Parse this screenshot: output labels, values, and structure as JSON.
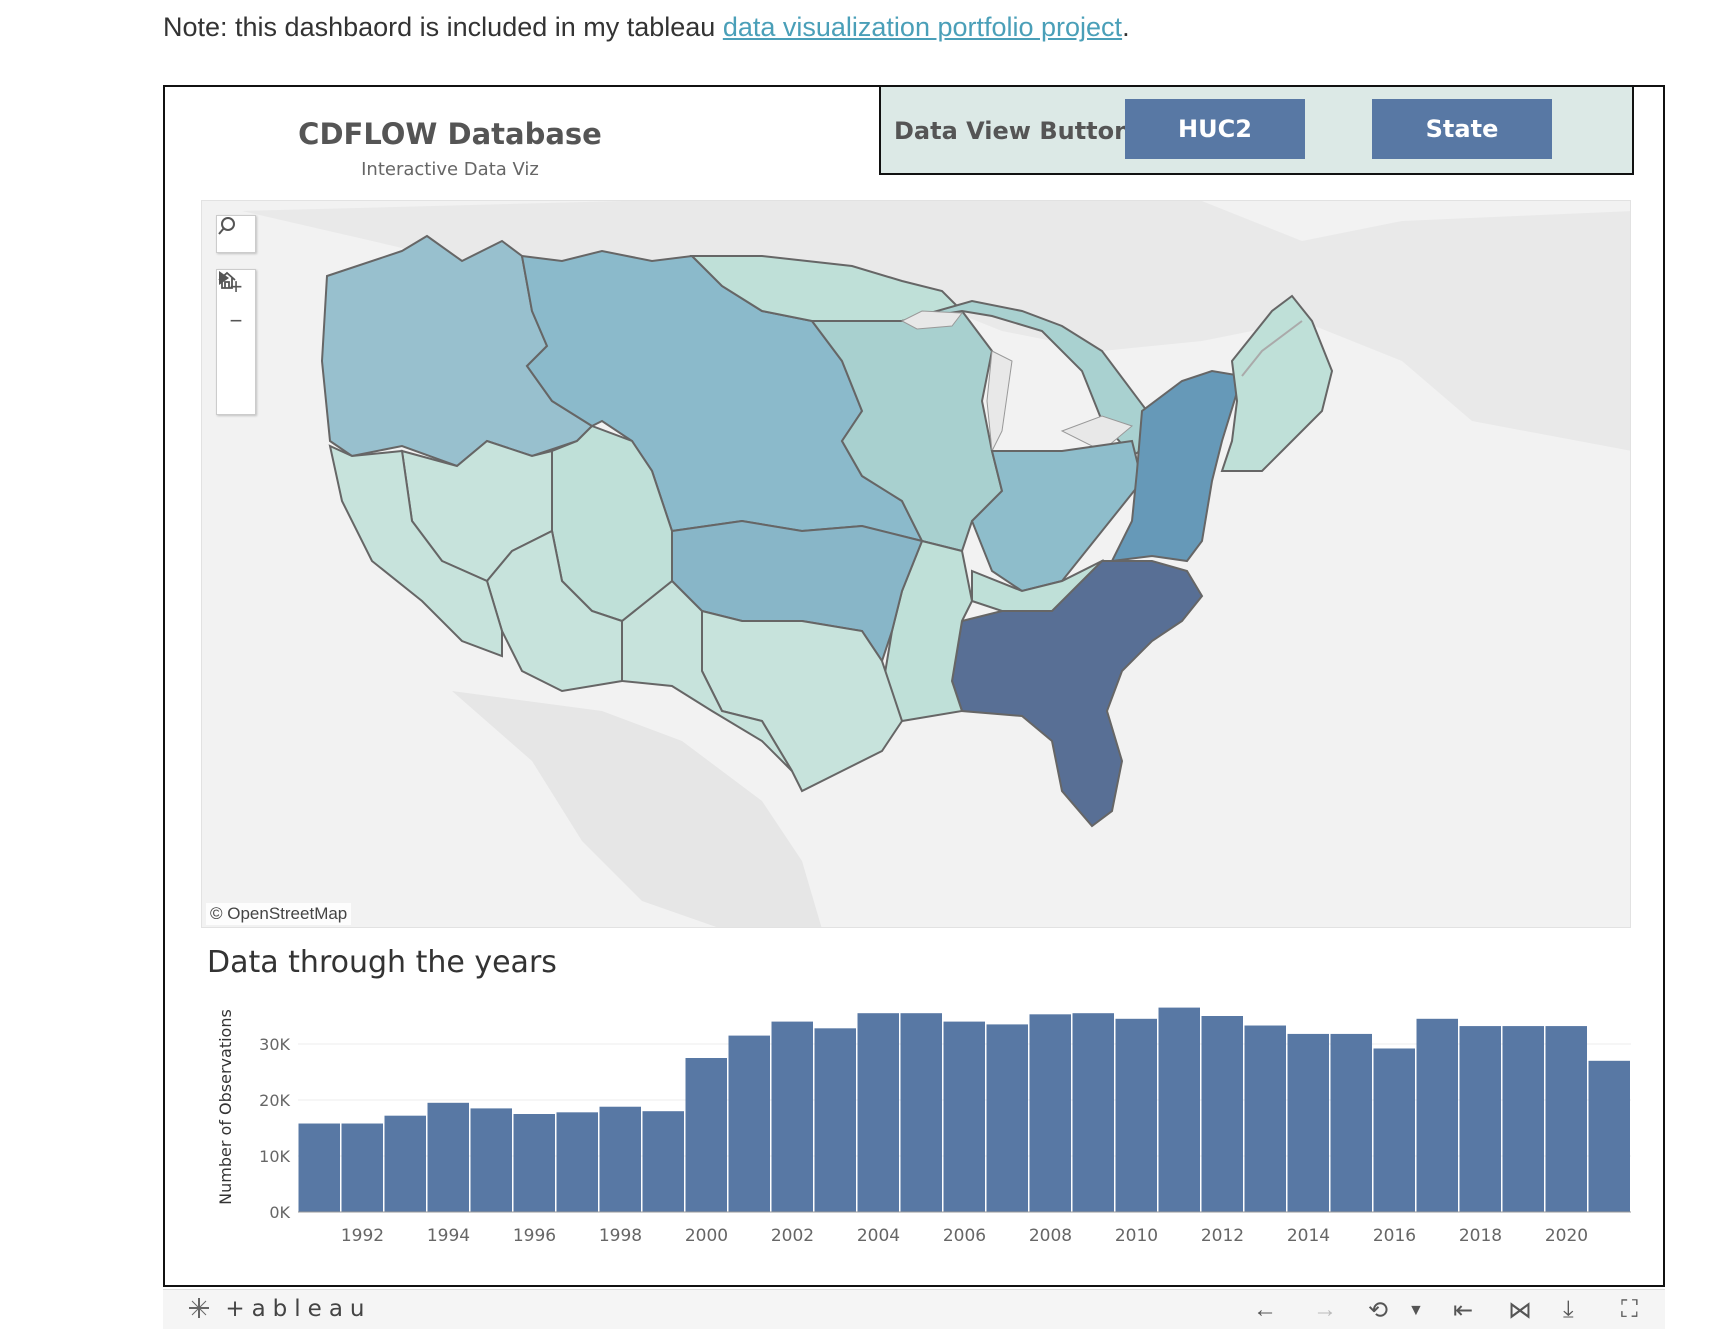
{
  "note": {
    "prefix": "Note: this dashbaord is included in my tableau ",
    "link_text": "data visualization portfolio project",
    "suffix": "."
  },
  "dashboard": {
    "title": "CDFLOW Database",
    "subtitle": "Interactive Data Viz",
    "buttons_label": "Data View Buttons",
    "buttons": [
      "HUC2",
      "State"
    ]
  },
  "map": {
    "attribution": "© OpenStreetMap",
    "tools": {
      "search": "search-icon",
      "zoom_in": "+",
      "zoom_out": "−",
      "home": "home-icon",
      "expand": "play-arrow-icon"
    },
    "colors": {
      "lightest": "#c7e3dc",
      "light": "#a9d1d0",
      "medium": "#8ebdcb",
      "darker": "#6699b8",
      "darkest": "#586f95"
    }
  },
  "chart_data": {
    "type": "bar",
    "title": "Data through the years",
    "ylabel": "Number of Observations",
    "ylim": [
      0,
      37500
    ],
    "yticks": [
      {
        "value": 0,
        "label": "0K"
      },
      {
        "value": 10000,
        "label": "10K"
      },
      {
        "value": 20000,
        "label": "20K"
      },
      {
        "value": 30000,
        "label": "30K"
      }
    ],
    "categories": [
      "1991",
      "1992",
      "1993",
      "1994",
      "1995",
      "1996",
      "1997",
      "1998",
      "1999",
      "2000",
      "2001",
      "2002",
      "2003",
      "2004",
      "2005",
      "2006",
      "2007",
      "2008",
      "2009",
      "2010",
      "2011",
      "2012",
      "2013",
      "2014",
      "2015",
      "2016",
      "2017",
      "2018",
      "2019",
      "2020",
      "2021"
    ],
    "values": [
      15800,
      15800,
      17200,
      19500,
      18500,
      17500,
      17800,
      18800,
      18000,
      27500,
      31500,
      34000,
      32800,
      35500,
      35500,
      34000,
      33500,
      35300,
      35500,
      34500,
      36500,
      35000,
      33300,
      31800,
      31800,
      29200,
      34500,
      33200,
      33200,
      33200,
      27000
    ],
    "xtick_labels": [
      "1992",
      "1994",
      "1996",
      "1998",
      "2000",
      "2002",
      "2004",
      "2006",
      "2008",
      "2010",
      "2012",
      "2014",
      "2016",
      "2018",
      "2020"
    ],
    "bar_color": "#5878a4",
    "grid": true
  },
  "footer": {
    "logo_text": "+ableau",
    "icons": [
      "undo-arrow-icon",
      "redo-arrow-icon",
      "revert-icon",
      "dropdown-icon",
      "reset-icon",
      "share-icon",
      "download-icon",
      "fullscreen-icon"
    ]
  }
}
